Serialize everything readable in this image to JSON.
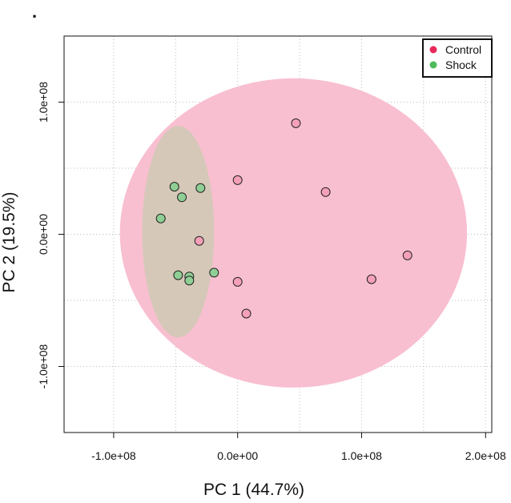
{
  "panel_marker": ".",
  "chart_data": {
    "type": "scatter",
    "xlabel": "PC 1 (44.7%)",
    "ylabel": "PC 2 (19.5%)",
    "xlim": [
      -140000000.0,
      205000000.0
    ],
    "ylim": [
      -150000000.0,
      150000000.0
    ],
    "x_ticks": [
      -100000000.0,
      0,
      100000000.0,
      200000000.0
    ],
    "x_tick_labels": [
      "-1.0e+08",
      "0.0e+00",
      "1.0e+08",
      "2.0e+08"
    ],
    "y_ticks": [
      -100000000.0,
      0,
      100000000.0
    ],
    "y_tick_labels": [
      "-1.0e+08",
      "0.0e+00",
      "1.0e+08"
    ],
    "grid": true,
    "legend_position": "top-right",
    "series": [
      {
        "name": "Control",
        "marker_color": "#f4a0b8",
        "legend_color": "#e8285a",
        "ellipse": {
          "center": [
            45000000.0,
            1000000.0
          ],
          "radius_x": 140000000.0,
          "radius_y": 117000000.0,
          "color": "#f8bfd0"
        },
        "points": [
          [
            47000000.0,
            84000000.0
          ],
          [
            0.0,
            41000000.0
          ],
          [
            71000000.0,
            32000000.0
          ],
          [
            -31000000.0,
            -5000000.0
          ],
          [
            137000000.0,
            -16000000.0
          ],
          [
            108000000.0,
            -34000000.0
          ],
          [
            0.0,
            -36000000.0
          ],
          [
            7000000.0,
            -60000000.0
          ]
        ]
      },
      {
        "name": "Shock",
        "marker_color": "#8fcf95",
        "legend_color": "#4dbb5a",
        "ellipse": {
          "center": [
            -48000000.0,
            2000000.0
          ],
          "radius_x": 29000000.0,
          "radius_y": 80000000.0,
          "color": "#d5c8b8"
        },
        "points": [
          [
            -51000000.0,
            36000000.0
          ],
          [
            -30000000.0,
            35000000.0
          ],
          [
            -45000000.0,
            28000000.0
          ],
          [
            -62000000.0,
            12000000.0
          ],
          [
            -19000000.0,
            -29000000.0
          ],
          [
            -48000000.0,
            -31000000.0
          ],
          [
            -39000000.0,
            -32000000.0
          ],
          [
            -39000000.0,
            -35000000.0
          ]
        ]
      }
    ]
  }
}
